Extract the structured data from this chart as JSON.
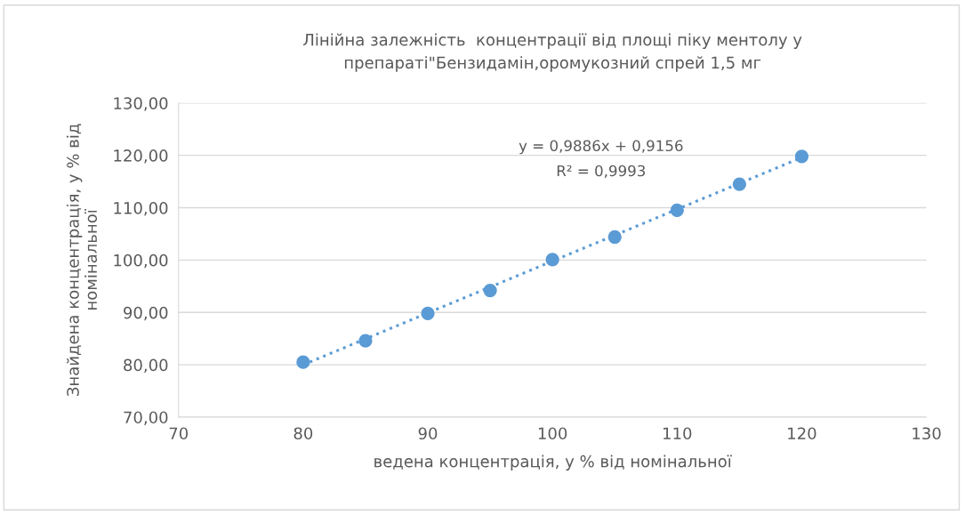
{
  "chart_data": {
    "type": "scatter",
    "title": "Лінійна залежність  концентрації від площі піку ментолу у\nпрепараті\"Бензидамін,оромукозний спрей 1,5 мг",
    "xlabel": "ведена концентрація, у % від номінальної",
    "ylabel": "Знайдена концентрація, у % від\nномінальної",
    "series": [
      {
        "color": "#5b9bd5",
        "marker": "circle",
        "x": [
          80,
          85,
          90,
          95,
          100,
          105,
          110,
          115,
          120
        ],
        "values": [
          80.5,
          84.6,
          89.8,
          94.2,
          100.1,
          104.4,
          109.5,
          114.5,
          119.8
        ]
      },
      {
        "type": "line",
        "color": "#5b9bd5",
        "line_style": "dotted",
        "marker": "none",
        "x": [
          80,
          120
        ],
        "values": [
          80.0,
          119.6
        ]
      }
    ],
    "annotations": [
      "y = 0,9886x + 0,9156",
      "R² = 0,9993"
    ],
    "xlim": [
      70,
      130
    ],
    "xticks": [
      70,
      80,
      90,
      100,
      110,
      120,
      130
    ],
    "ylim": [
      70,
      130
    ],
    "yticks": [
      {
        "value": 70,
        "label": "70,00"
      },
      {
        "value": 80,
        "label": "80,00"
      },
      {
        "value": 90,
        "label": "90,00"
      },
      {
        "value": 100,
        "label": "100,00"
      },
      {
        "value": 110,
        "label": "110,00"
      },
      {
        "value": 120,
        "label": "120,00"
      },
      {
        "value": 130,
        "label": "130,00"
      }
    ],
    "grid": "y",
    "legend": false
  }
}
